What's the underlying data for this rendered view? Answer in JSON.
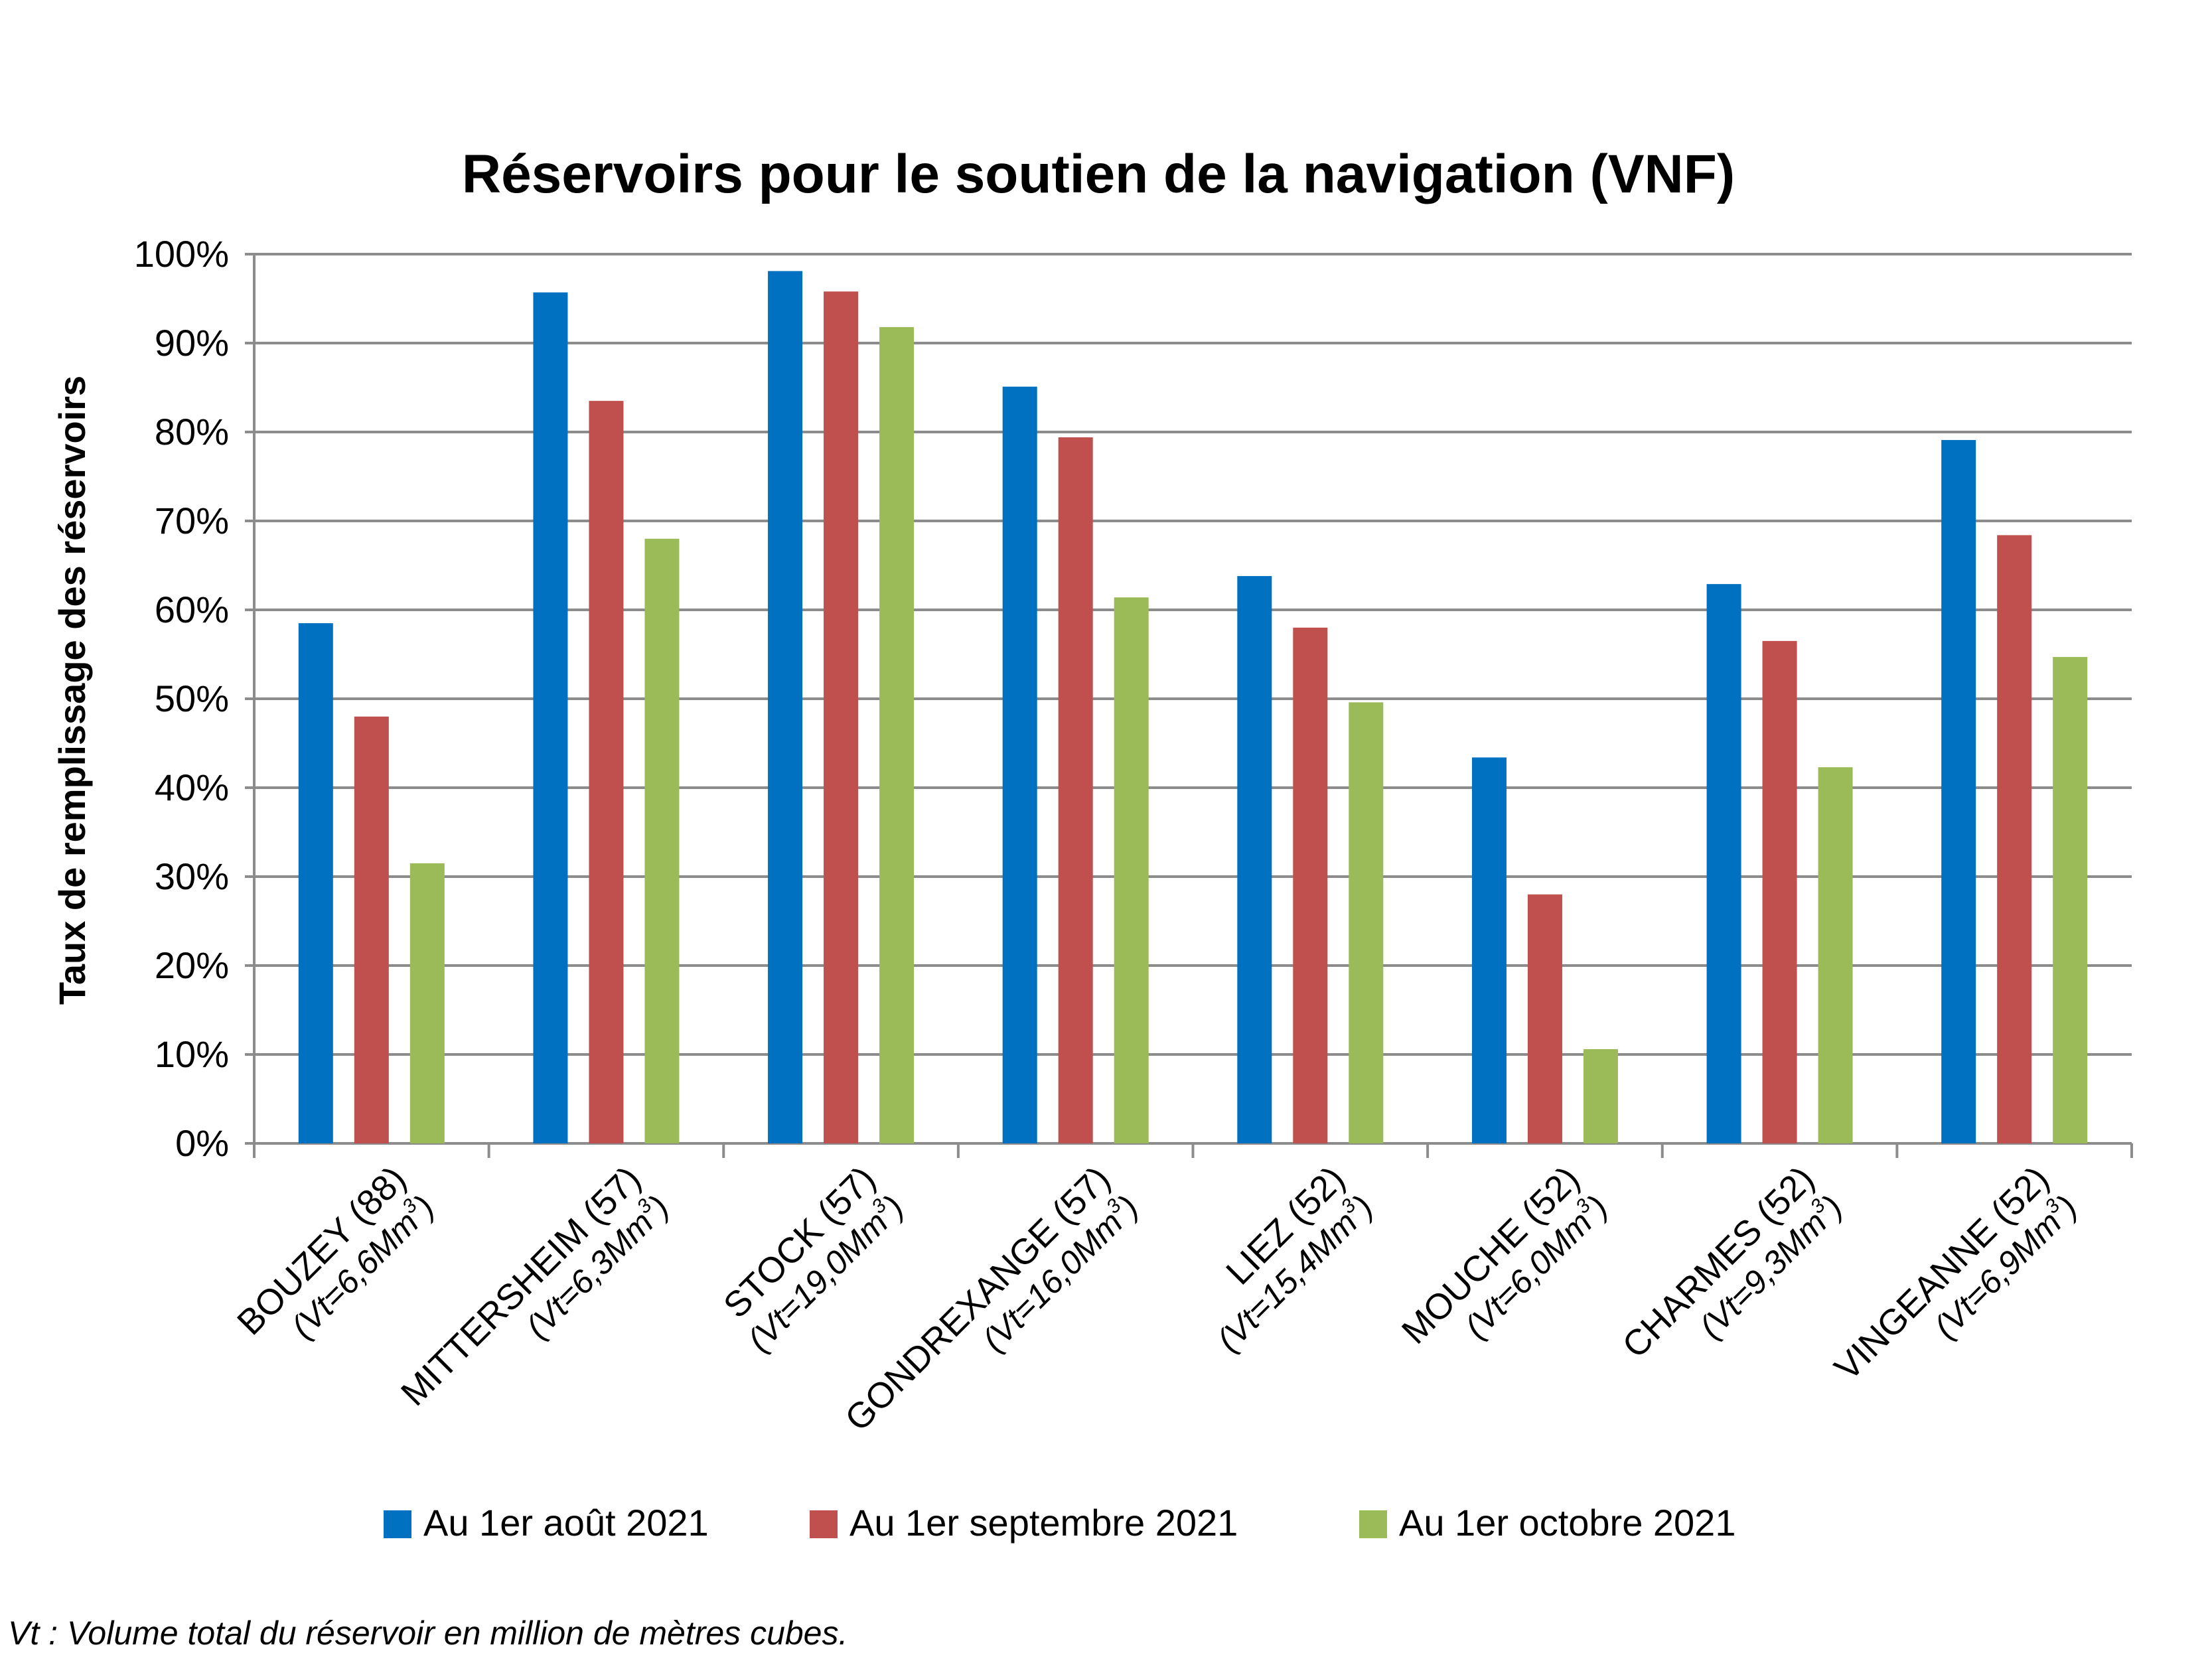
{
  "chart_data": {
    "type": "bar",
    "title": "Réservoirs pour le soutien de la navigation (VNF)",
    "ylabel": "Taux de remplissage des réservoirs",
    "xlabel": "",
    "ylim": [
      0,
      100
    ],
    "y_ticks": [
      "0%",
      "10%",
      "20%",
      "30%",
      "40%",
      "50%",
      "60%",
      "70%",
      "80%",
      "90%",
      "100%"
    ],
    "grid": true,
    "legend_position": "bottom",
    "categories": [
      {
        "name": "BOUZEY (88)",
        "volume_prefix": "(Vt=6,6Mm",
        "volume_sup": "3",
        "volume_suffix": ")"
      },
      {
        "name": "MITTERSHEIM (57)",
        "volume_prefix": "(Vt=6,3Mm",
        "volume_sup": "3",
        "volume_suffix": ")"
      },
      {
        "name": "STOCK (57)",
        "volume_prefix": "(Vt=19,0Mm",
        "volume_sup": "3",
        "volume_suffix": ")"
      },
      {
        "name": "GONDREXANGE (57)",
        "volume_prefix": "(Vt=16,0Mm",
        "volume_sup": "3",
        "volume_suffix": ")"
      },
      {
        "name": "LIEZ (52)",
        "volume_prefix": "(Vt=15,4Mm",
        "volume_sup": "3",
        "volume_suffix": ")"
      },
      {
        "name": "MOUCHE (52)",
        "volume_prefix": "(Vt=6,0Mm",
        "volume_sup": "3",
        "volume_suffix": ")"
      },
      {
        "name": "CHARMES (52)",
        "volume_prefix": "(Vt=9,3Mm",
        "volume_sup": "3",
        "volume_suffix": ")"
      },
      {
        "name": "VINGEANNE (52)",
        "volume_prefix": "(Vt=6,9Mm",
        "volume_sup": "3",
        "volume_suffix": ")"
      }
    ],
    "series": [
      {
        "name": "Au 1er août 2021",
        "color": "#0070c0",
        "values": [
          58.5,
          95.7,
          98.1,
          85.1,
          63.8,
          43.4,
          62.9,
          79.1
        ]
      },
      {
        "name": "Au 1er septembre 2021",
        "color": "#c0504d",
        "values": [
          48.0,
          83.5,
          95.8,
          79.4,
          58.0,
          28.0,
          56.5,
          68.4
        ]
      },
      {
        "name": "Au 1er octobre 2021",
        "color": "#9bbb59",
        "values": [
          31.5,
          68.0,
          91.8,
          61.4,
          49.6,
          10.6,
          42.3,
          54.7
        ]
      }
    ]
  },
  "footnote": "Vt : Volume total du réservoir en million de mètres cubes."
}
